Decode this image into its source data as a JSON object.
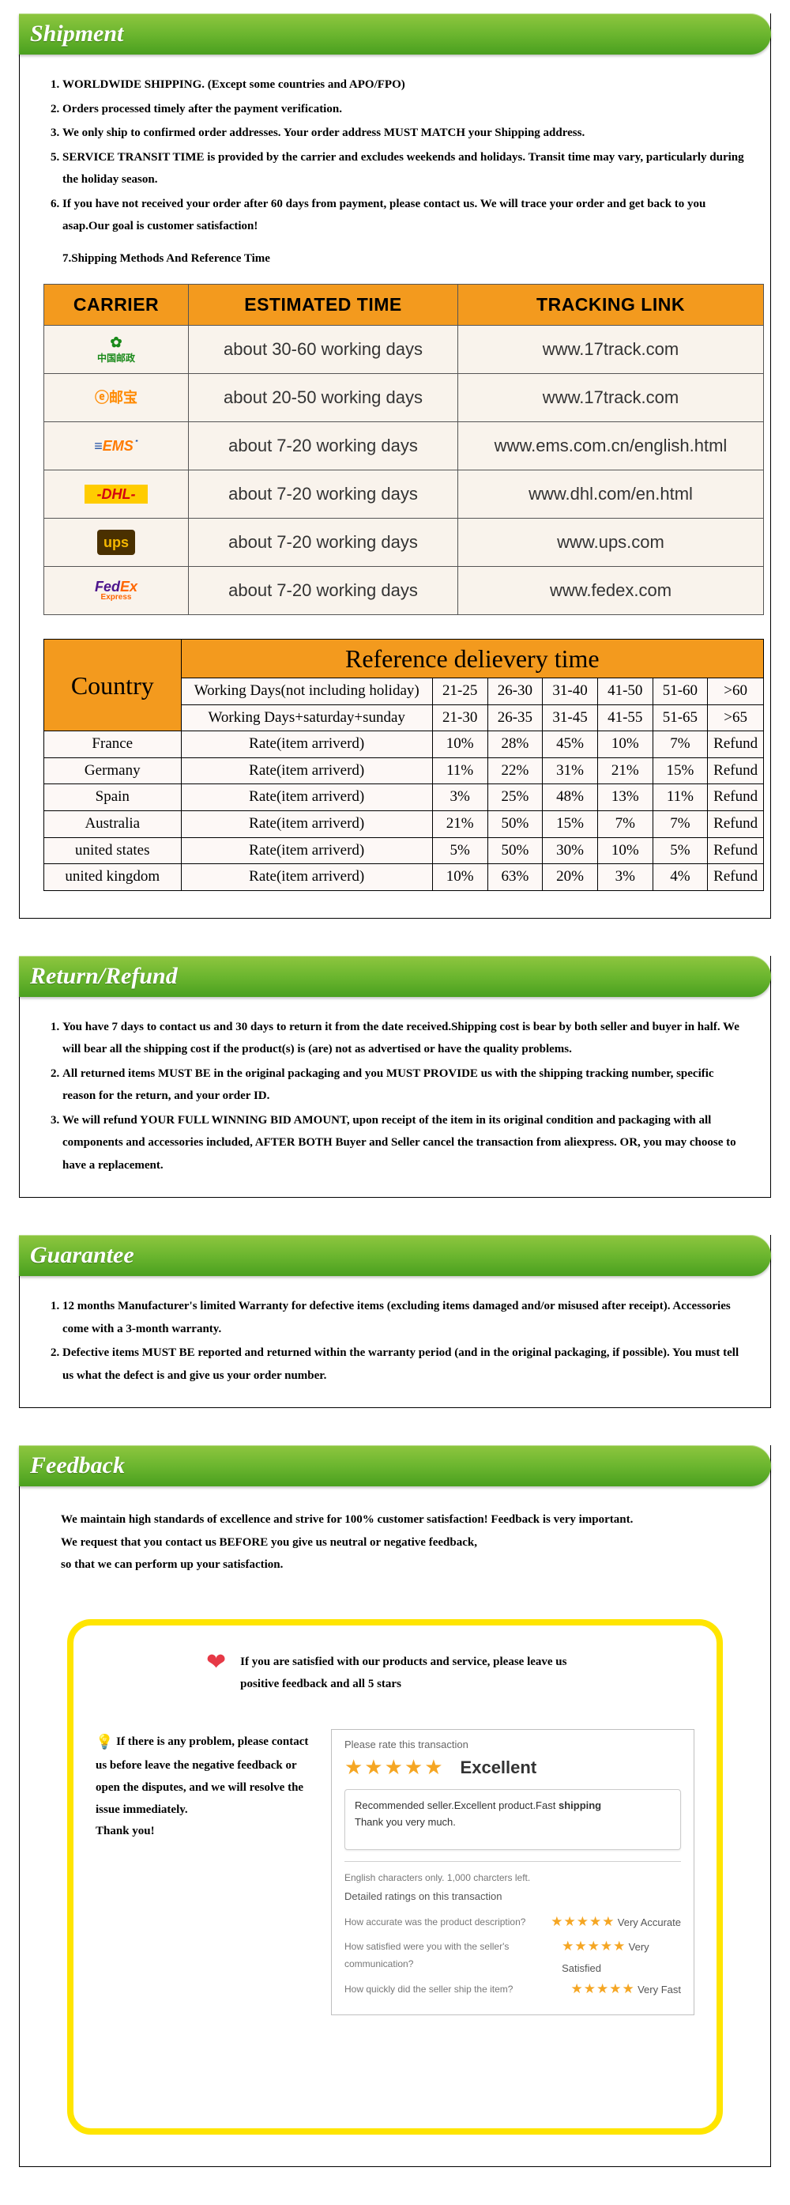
{
  "sections": {
    "shipment": {
      "title": "Shipment",
      "points": [
        "WORLDWIDE SHIPPING. (Except some countries and APO/FPO)",
        "Orders processed timely after the payment verification.",
        "We only ship to confirmed order addresses. Your order address MUST MATCH your Shipping address.",
        "SERVICE TRANSIT TIME is provided by the carrier and excludes weekends and holidays. Transit time may vary, particularly during the holiday season.",
        "If you have not received your order after 60 days from payment, please contact us. We will trace your order and get back to you asap.Our goal is customer satisfaction!"
      ],
      "note7": "7.Shipping Methods And Reference Time",
      "carrier_table": {
        "headers": [
          "CARRIER",
          "ESTIMATED TIME",
          "TRACKING LINK"
        ],
        "rows": [
          {
            "logo_html": "<span class='chinapost'>✿<br><span style='font-size:12px'>中国邮政</span></span>",
            "time": "about 30-60 working days",
            "link": "www.17track.com"
          },
          {
            "logo_html": "<span class='epost'>ⓔ邮宝</span>",
            "time": "about 20-50 working days",
            "link": "www.17track.com"
          },
          {
            "logo_html": "<span class='ems'><span style='color:#1e4fa3'>≡</span>EMS<span style='color:#1e4fa3'>˙</span></span>",
            "time": "about 7-20 working days",
            "link": "www.ems.com.cn/english.html"
          },
          {
            "logo_html": "<span class='dhl'>-DHL-</span>",
            "time": "about 7-20 working days",
            "link": "www.dhl.com/en.html"
          },
          {
            "logo_html": "<span class='ups'>ups</span>",
            "time": "about 7-20 working days",
            "link": "www.ups.com"
          },
          {
            "logo_html": "<span class='fedex'><span class='f1'>Fed</span><span class='f2'>Ex</span></span><span style='font-size:10px;color:#ff6600;display:block'>Express</span>",
            "time": "about 7-20 working days",
            "link": "www.fedex.com"
          }
        ]
      },
      "delivery_table": {
        "title": "Reference delievery time",
        "country_label": "Country",
        "header_rows": [
          [
            "Working Days(not including holiday)",
            "21-25",
            "26-30",
            "31-40",
            "41-50",
            "51-60",
            ">60"
          ],
          [
            "Working Days+saturday+sunday",
            "21-30",
            "26-35",
            "31-45",
            "41-55",
            "51-65",
            ">65"
          ]
        ],
        "body_rows": [
          [
            "France",
            "Rate(item arriverd)",
            "10%",
            "28%",
            "45%",
            "10%",
            "7%",
            "Refund"
          ],
          [
            "Germany",
            "Rate(item arriverd)",
            "11%",
            "22%",
            "31%",
            "21%",
            "15%",
            "Refund"
          ],
          [
            "Spain",
            "Rate(item arriverd)",
            "3%",
            "25%",
            "48%",
            "13%",
            "11%",
            "Refund"
          ],
          [
            "Australia",
            "Rate(item arriverd)",
            "21%",
            "50%",
            "15%",
            "7%",
            "7%",
            "Refund"
          ],
          [
            "united states",
            "Rate(item arriverd)",
            "5%",
            "50%",
            "30%",
            "10%",
            "5%",
            "Refund"
          ],
          [
            "united kingdom",
            "Rate(item arriverd)",
            "10%",
            "63%",
            "20%",
            "3%",
            "4%",
            "Refund"
          ]
        ]
      }
    },
    "return": {
      "title": "Return/Refund",
      "points": [
        "You have 7 days to contact us and 30 days to return it from the date received.Shipping cost is bear by both seller and buyer in half. We will bear all the shipping cost if the product(s) is (are) not as advertised or have the quality problems.",
        "All returned items MUST BE in the original packaging and you MUST PROVIDE us with the shipping tracking number, specific reason for the return, and your order ID.",
        "We will refund YOUR FULL WINNING BID AMOUNT, upon receipt of the item in its original condition and packaging with all components and accessories included, AFTER BOTH Buyer and Seller cancel the transaction from aliexpress. OR, you may choose to have a replacement."
      ]
    },
    "guarantee": {
      "title": "Guarantee",
      "points": [
        "12 months Manufacturer's limited Warranty for defective items (excluding items damaged and/or misused after receipt). Accessories come with a 3-month warranty.",
        "Defective items MUST BE reported and returned within the warranty period (and in the original packaging, if possible). You must tell us what the defect is and give us your order number."
      ]
    },
    "feedback": {
      "title": "Feedback",
      "intro": [
        "We maintain high standards of excellence and strive for 100% customer satisfaction! Feedback is very important.",
        "We request that you contact us BEFORE you give us neutral or negative feedback,",
        "so that we can perform up your satisfaction."
      ],
      "satisfy": "If you are satisfied with our products and service, please leave us positive feedback and all 5 stars",
      "problem": "If there is any problem, please contact us before leave the negative feedback or open the disputes, and we will resolve the issue immediately.\nThank you!",
      "rating": {
        "head": "Please rate this transaction",
        "excellent": "Excellent",
        "quote": "Recommended seller.Excellent product.Fast shipping\nThank you very much.",
        "chars": "English characters only. 1,000 charcters left.",
        "detail_head": "Detailed ratings on this transaction",
        "rows": [
          {
            "q": "How accurate was the product description?",
            "a": "Very Accurate"
          },
          {
            "q": "How satisfied were you with the seller's communication?",
            "a": "Very Satisfied"
          },
          {
            "q": "How quickly did the seller ship the item?",
            "a": "Very Fast"
          }
        ]
      }
    }
  }
}
